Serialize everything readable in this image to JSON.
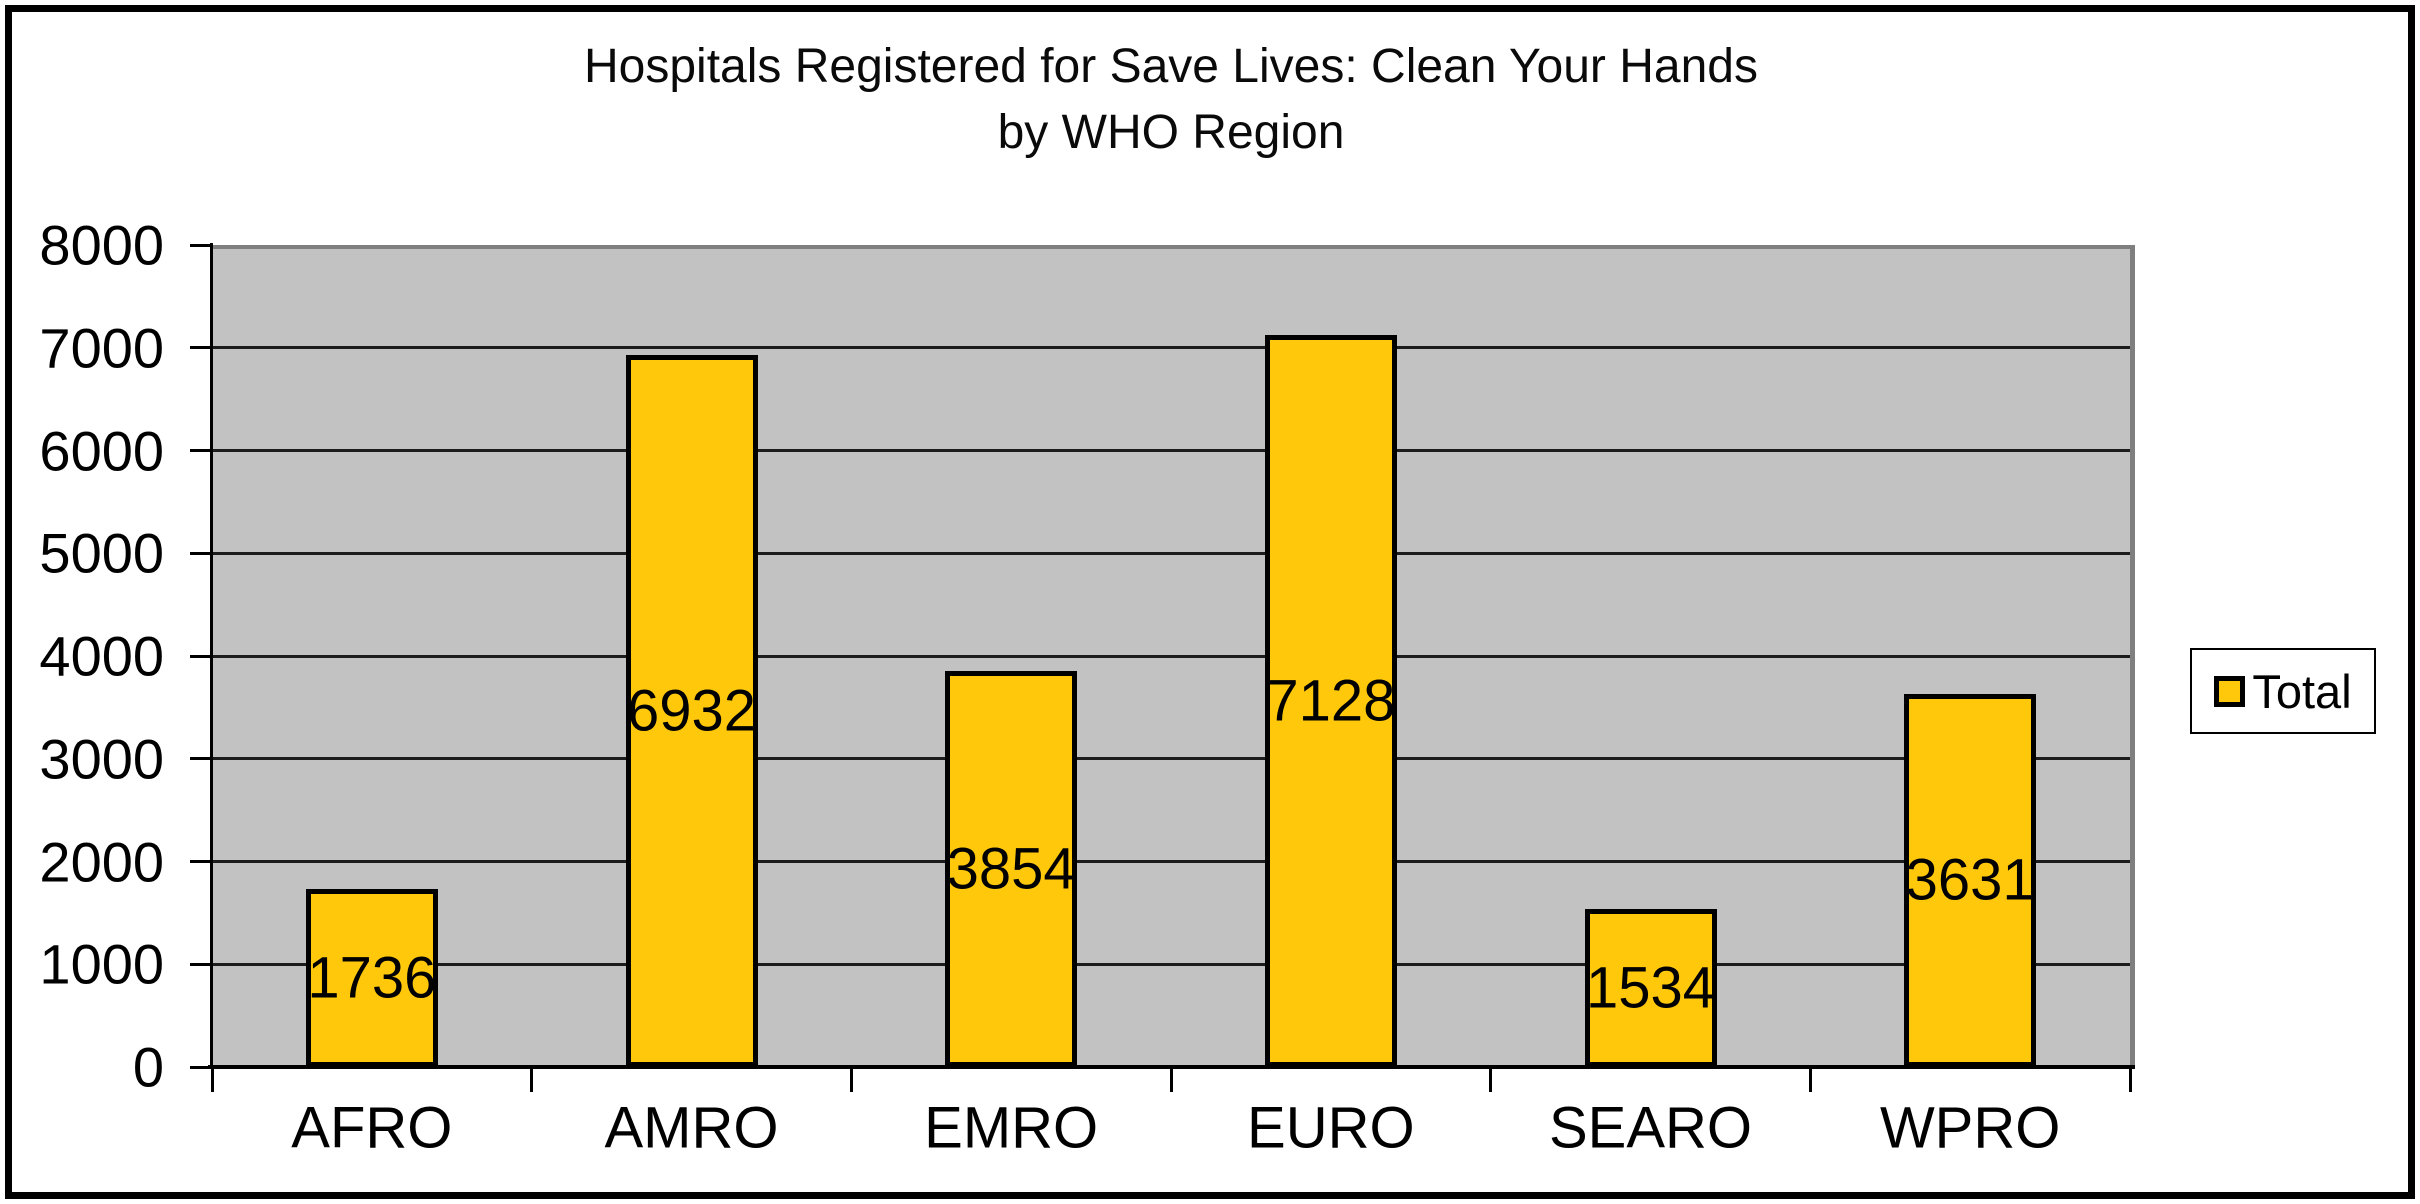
{
  "chart_data": {
    "type": "bar",
    "title_line1": "Hospitals Registered for Save Lives: Clean Your Hands",
    "title_line2": "by WHO Region",
    "categories": [
      "AFRO",
      "AMRO",
      "EMRO",
      "EURO",
      "SEARO",
      "WPRO"
    ],
    "series": [
      {
        "name": "Total",
        "values": [
          1736,
          6932,
          3854,
          7128,
          1534,
          3631
        ]
      }
    ],
    "data_labels": [
      1736,
      6932,
      3854,
      7128,
      1534,
      3631
    ],
    "data_label_position": "center",
    "ylim": [
      0,
      8000
    ],
    "ytick_step": 1000,
    "yticks": [
      0,
      1000,
      2000,
      3000,
      4000,
      5000,
      6000,
      7000,
      8000
    ],
    "xlabel": "",
    "ylabel": "",
    "grid": true,
    "legend_position": "right"
  },
  "legend": {
    "label": "Total"
  },
  "colors": {
    "bar_fill": "#FFC80A",
    "bar_border": "#000000",
    "plot_bg": "#C2C2C2",
    "plot_border_gray": "#7F7F7F",
    "axis_black": "#000000",
    "gridline": "#1C1C1C",
    "text": "#000000",
    "legend_bg": "#FFFFFF"
  }
}
